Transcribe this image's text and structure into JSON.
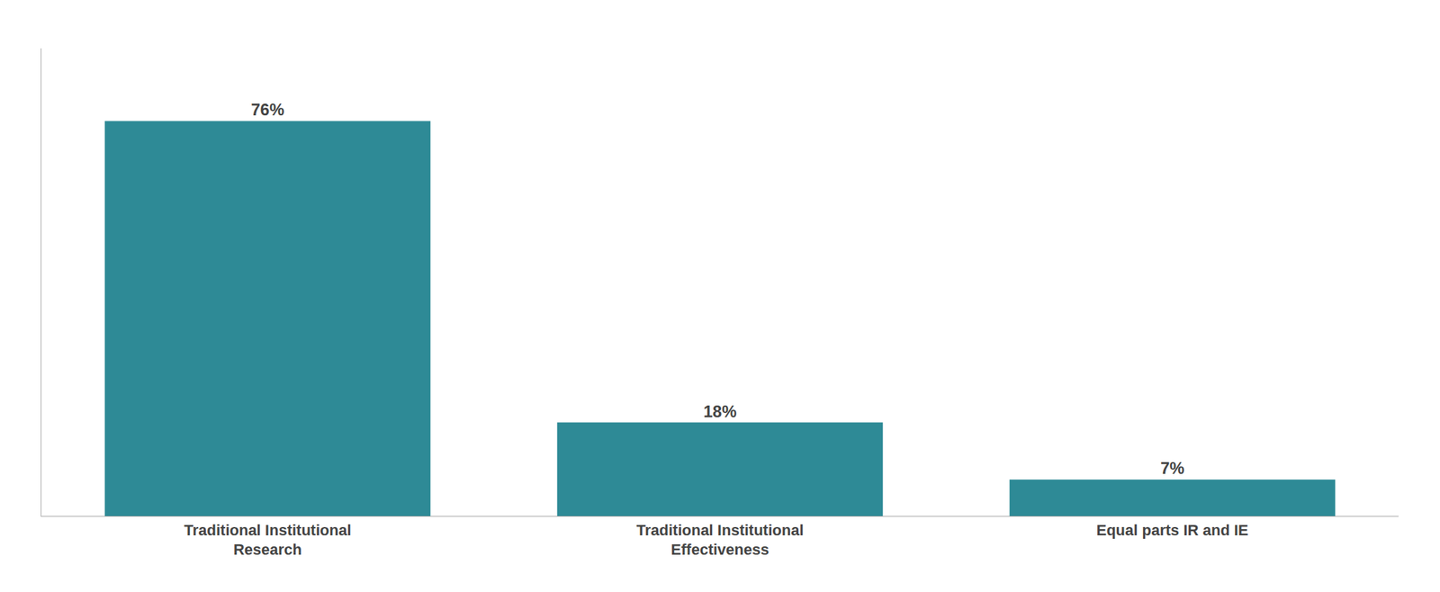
{
  "chart_data": {
    "type": "bar",
    "categories": [
      "Traditional Institutional\nResearch",
      "Traditional Institutional\nEffectiveness",
      "Equal parts IR and IE"
    ],
    "values": [
      76,
      18,
      7
    ],
    "value_labels": [
      "76%",
      "18%",
      "7%"
    ],
    "data_labels": true,
    "color": "#2e8a96",
    "ylim": [
      0,
      90
    ],
    "grid": false,
    "tick_labels": "x"
  }
}
